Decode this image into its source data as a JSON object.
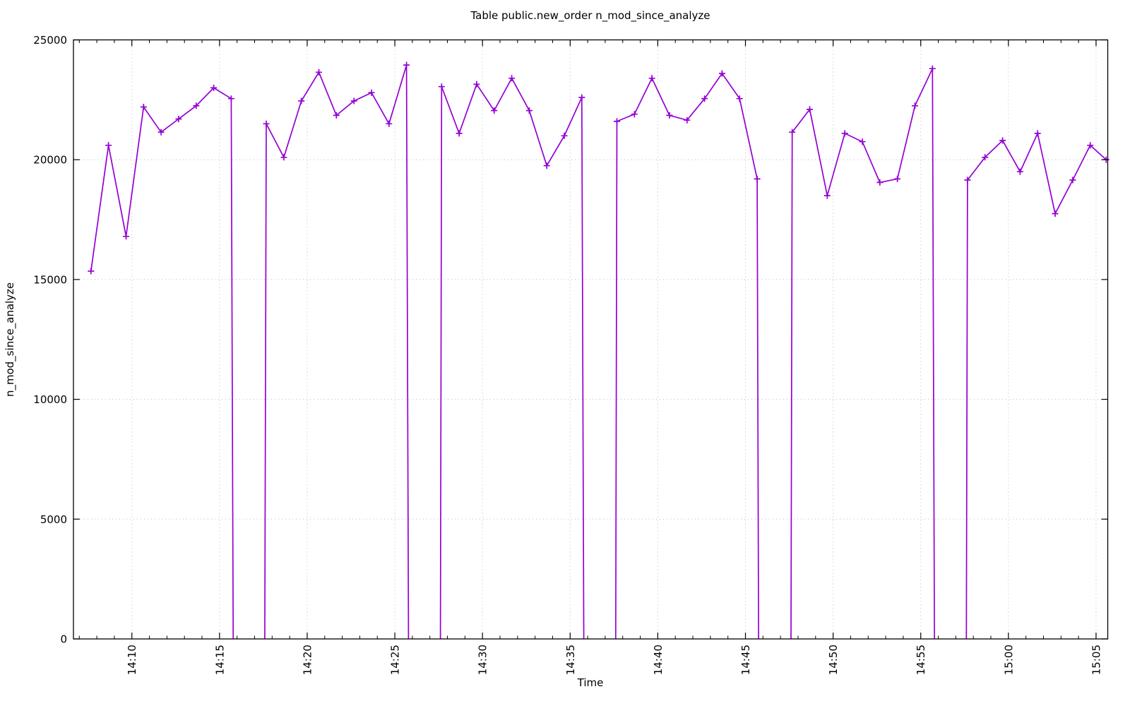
{
  "page": {
    "background": "#ffffff",
    "text_color": "#000000"
  },
  "chart_data": {
    "type": "line",
    "title": "Table public.new_order n_mod_since_analyze",
    "xlabel": "Time",
    "ylabel": "n_mod_since_analyze",
    "ylim": [
      0,
      25000
    ],
    "yticks": [
      0,
      5000,
      10000,
      15000,
      20000,
      25000
    ],
    "x_axis": {
      "unit": "minutes_after_14:00",
      "range": [
        6.667,
        65.667
      ],
      "major_ticks": [
        {
          "minute": 10,
          "label": "14:10"
        },
        {
          "minute": 15,
          "label": "14:15"
        },
        {
          "minute": 20,
          "label": "14:20"
        },
        {
          "minute": 25,
          "label": "14:25"
        },
        {
          "minute": 30,
          "label": "14:30"
        },
        {
          "minute": 35,
          "label": "14:35"
        },
        {
          "minute": 40,
          "label": "14:40"
        },
        {
          "minute": 45,
          "label": "14:45"
        },
        {
          "minute": 50,
          "label": "14:50"
        },
        {
          "minute": 55,
          "label": "14:55"
        },
        {
          "minute": 60,
          "label": "15:00"
        },
        {
          "minute": 65,
          "label": "15:05"
        }
      ],
      "minor_tick_every": 1
    },
    "grid": {
      "show": true,
      "style": "dotted",
      "color": "#bbbbbb"
    },
    "legend": "none",
    "series": [
      {
        "name": "n_mod_since_analyze",
        "color": "#9400d3",
        "marker": "plus",
        "segments": [
          [
            [
              7.667,
              15350
            ],
            [
              8.667,
              20600
            ],
            [
              9.667,
              16800
            ],
            [
              10.667,
              22200
            ],
            [
              11.667,
              21150
            ],
            [
              12.667,
              21700
            ],
            [
              13.667,
              22250
            ],
            [
              14.667,
              23000
            ],
            [
              15.667,
              22550
            ],
            [
              15.78,
              0
            ]
          ],
          [
            [
              17.58,
              0
            ],
            [
              17.667,
              21500
            ],
            [
              18.667,
              20100
            ],
            [
              19.667,
              22450
            ],
            [
              20.667,
              23650
            ],
            [
              21.667,
              21850
            ],
            [
              22.667,
              22450
            ],
            [
              23.667,
              22800
            ],
            [
              24.667,
              21500
            ],
            [
              25.667,
              23950
            ],
            [
              25.78,
              0
            ]
          ],
          [
            [
              27.6,
              0
            ],
            [
              27.667,
              23050
            ],
            [
              28.667,
              21100
            ],
            [
              29.667,
              23150
            ],
            [
              30.667,
              22050
            ],
            [
              31.667,
              23400
            ],
            [
              32.667,
              22050
            ],
            [
              33.667,
              19750
            ],
            [
              34.667,
              21000
            ],
            [
              35.667,
              22600
            ],
            [
              35.78,
              0
            ]
          ],
          [
            [
              37.6,
              0
            ],
            [
              37.667,
              21600
            ],
            [
              38.667,
              21900
            ],
            [
              39.667,
              23400
            ],
            [
              40.667,
              21850
            ],
            [
              41.667,
              21650
            ],
            [
              42.667,
              22550
            ],
            [
              43.667,
              23600
            ],
            [
              44.667,
              22550
            ],
            [
              45.667,
              19200
            ],
            [
              45.75,
              0
            ]
          ],
          [
            [
              47.6,
              0
            ],
            [
              47.667,
              21150
            ],
            [
              48.667,
              22100
            ],
            [
              49.667,
              18500
            ],
            [
              50.667,
              21100
            ],
            [
              51.667,
              20750
            ],
            [
              52.667,
              19050
            ],
            [
              53.667,
              19200
            ],
            [
              54.667,
              22250
            ],
            [
              55.667,
              23800
            ],
            [
              55.78,
              0
            ]
          ],
          [
            [
              57.6,
              0
            ],
            [
              57.667,
              19150
            ],
            [
              58.667,
              20100
            ],
            [
              59.667,
              20800
            ],
            [
              60.667,
              19500
            ],
            [
              61.667,
              21100
            ],
            [
              62.667,
              17750
            ],
            [
              63.667,
              19150
            ],
            [
              64.667,
              20600
            ],
            [
              65.58,
              20000
            ]
          ]
        ]
      }
    ]
  }
}
